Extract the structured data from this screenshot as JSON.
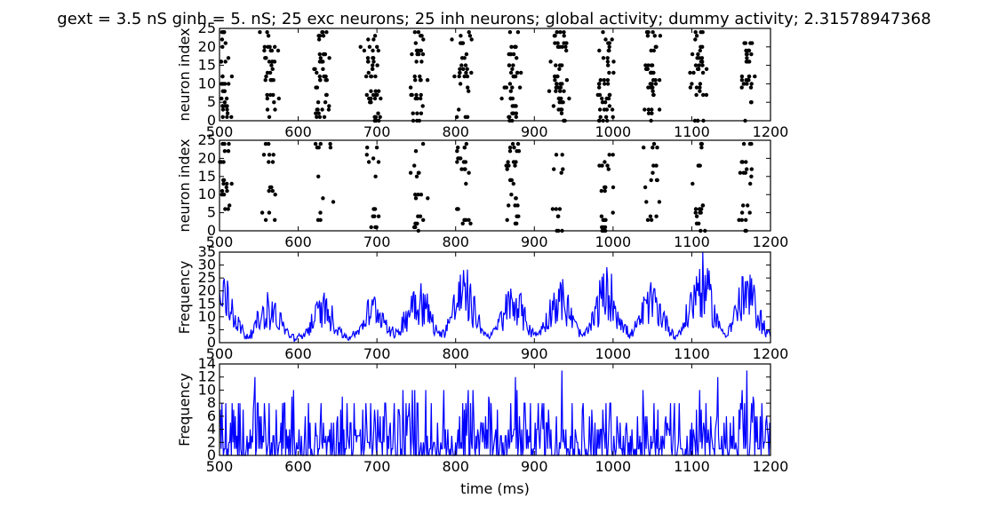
{
  "title": "gext = 3.5 nS ginh = 5. nS; 25 exc neurons; 25 inh neurons; global activity; dummy activity; 2.31578947368",
  "colors": {
    "raster": "#000000",
    "activity": "#0000ff",
    "axes": "#000000",
    "background": "#ffffff"
  },
  "chart_data": [
    {
      "type": "scatter",
      "name": "excitatory-raster",
      "ylabel": "neuron index",
      "xlabel": "",
      "xlim": [
        500,
        1200
      ],
      "ylim": [
        0,
        25
      ],
      "xticks": [
        "500",
        "600",
        "700",
        "800",
        "900",
        "1000",
        "1100",
        "1200"
      ],
      "yticks": [
        "0",
        "5",
        "10",
        "15",
        "20",
        "25"
      ],
      "burst_times_ms": [
        505,
        563,
        630,
        695,
        752,
        810,
        873,
        932,
        990,
        1050,
        1108,
        1170
      ],
      "neurons": 25,
      "marker": "dot"
    },
    {
      "type": "scatter",
      "name": "inhibitory-raster",
      "ylabel": "neuron index",
      "xlabel": "",
      "xlim": [
        500,
        1200
      ],
      "ylim": [
        0,
        25
      ],
      "xticks": [
        "500",
        "600",
        "700",
        "800",
        "900",
        "1000",
        "1100",
        "1200"
      ],
      "yticks": [
        "0",
        "5",
        "10",
        "15",
        "20",
        "25"
      ],
      "burst_times_ms": [
        505,
        563,
        630,
        695,
        752,
        810,
        873,
        932,
        990,
        1050,
        1108,
        1170
      ],
      "neurons": 25,
      "marker": "dot"
    },
    {
      "type": "line",
      "name": "global-activity",
      "ylabel": "Frequency",
      "xlabel": "",
      "xlim": [
        500,
        1200
      ],
      "ylim": [
        0,
        35
      ],
      "xticks": [
        "500",
        "600",
        "700",
        "800",
        "900",
        "1000",
        "1100",
        "1200"
      ],
      "yticks": [
        "0",
        "5",
        "10",
        "15",
        "20",
        "25",
        "30",
        "35"
      ],
      "peaks": [
        {
          "t": 505,
          "value": 24
        },
        {
          "t": 563,
          "value": 17
        },
        {
          "t": 632,
          "value": 17
        },
        {
          "t": 697,
          "value": 17
        },
        {
          "t": 752,
          "value": 24
        },
        {
          "t": 810,
          "value": 26
        },
        {
          "t": 873,
          "value": 21
        },
        {
          "t": 932,
          "value": 23
        },
        {
          "t": 992,
          "value": 26
        },
        {
          "t": 1050,
          "value": 21
        },
        {
          "t": 1112,
          "value": 31
        },
        {
          "t": 1170,
          "value": 25
        }
      ],
      "baseline_range": [
        0,
        2
      ]
    },
    {
      "type": "line",
      "name": "dummy-activity",
      "ylabel": "Frequency",
      "xlabel": "time (ms)",
      "xlim": [
        500,
        1200
      ],
      "ylim": [
        0,
        14
      ],
      "xticks": [
        "500",
        "600",
        "700",
        "800",
        "900",
        "1000",
        "1100",
        "1200"
      ],
      "yticks": [
        "0",
        "2",
        "4",
        "6",
        "8",
        "10",
        "12",
        "14"
      ],
      "noise_range": [
        0,
        8
      ],
      "spikes": [
        {
          "t": 545,
          "value": 12
        },
        {
          "t": 876,
          "value": 12
        },
        {
          "t": 935,
          "value": 13
        },
        {
          "t": 1133,
          "value": 12
        },
        {
          "t": 1170,
          "value": 13
        }
      ]
    }
  ]
}
